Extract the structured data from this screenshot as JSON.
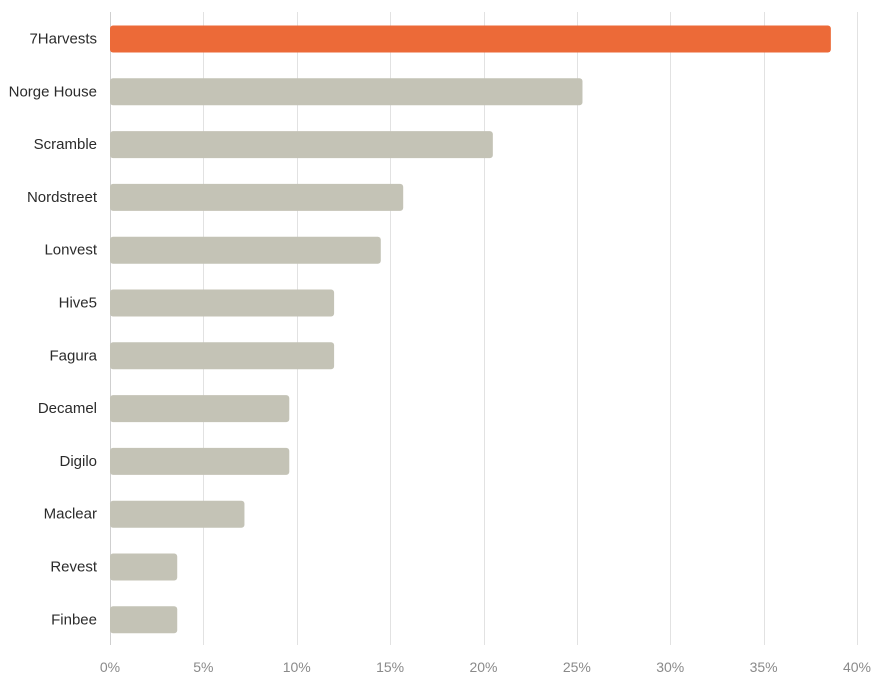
{
  "chart_data": {
    "type": "bar",
    "orientation": "horizontal",
    "title": "",
    "xlabel": "",
    "ylabel": "",
    "categories": [
      "7Harvests",
      "Norge House",
      "Scramble",
      "Nordstreet",
      "Lonvest",
      "Hive5",
      "Fagura",
      "Decamel",
      "Digilo",
      "Maclear",
      "Revest",
      "Finbee"
    ],
    "values": [
      38.6,
      25.3,
      20.5,
      15.7,
      14.5,
      12.0,
      12.0,
      9.6,
      9.6,
      7.2,
      3.6,
      3.6
    ],
    "highlight": "7Harvests",
    "xlim": [
      0,
      40
    ],
    "xticks": [
      0,
      5,
      10,
      15,
      20,
      25,
      30,
      35,
      40
    ],
    "xtick_labels": [
      "0%",
      "5%",
      "10%",
      "15%",
      "20%",
      "25%",
      "30%",
      "35%",
      "40%"
    ],
    "grid": "vertical",
    "colors": {
      "highlight": "#EC6A38",
      "bar": "#C4C3B6",
      "grid": "#E2E2E2",
      "category_text": "#2B2B2B",
      "tick_text": "#8A8A8A"
    }
  }
}
